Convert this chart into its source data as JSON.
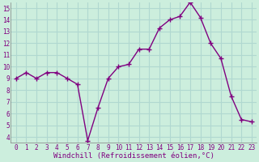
{
  "x": [
    0,
    1,
    2,
    3,
    4,
    5,
    6,
    7,
    8,
    9,
    10,
    11,
    12,
    13,
    14,
    15,
    16,
    17,
    18,
    19,
    20,
    21,
    22,
    23
  ],
  "y": [
    9,
    9.5,
    9,
    9.5,
    9.5,
    9,
    8.5,
    3.7,
    6.5,
    9,
    10,
    10.2,
    11.5,
    11.5,
    13.3,
    14,
    14.3,
    15.5,
    14.2,
    12,
    10.7,
    7.5,
    5.5,
    5.3
  ],
  "line_color": "#800080",
  "marker": "+",
  "marker_size": 4,
  "linewidth": 1.0,
  "xlabel": "Windchill (Refroidissement éolien,°C)",
  "xlim": [
    -0.5,
    23.5
  ],
  "ylim": [
    3.5,
    15.5
  ],
  "yticks": [
    4,
    5,
    6,
    7,
    8,
    9,
    10,
    11,
    12,
    13,
    14,
    15
  ],
  "xticks": [
    0,
    1,
    2,
    3,
    4,
    5,
    6,
    7,
    8,
    9,
    10,
    11,
    12,
    13,
    14,
    15,
    16,
    17,
    18,
    19,
    20,
    21,
    22,
    23
  ],
  "bg_color": "#cceedd",
  "grid_color": "#b0d8d0",
  "tick_label_color": "#800080",
  "xlabel_color": "#800080",
  "xlabel_fontsize": 6.5,
  "tick_fontsize": 5.5
}
